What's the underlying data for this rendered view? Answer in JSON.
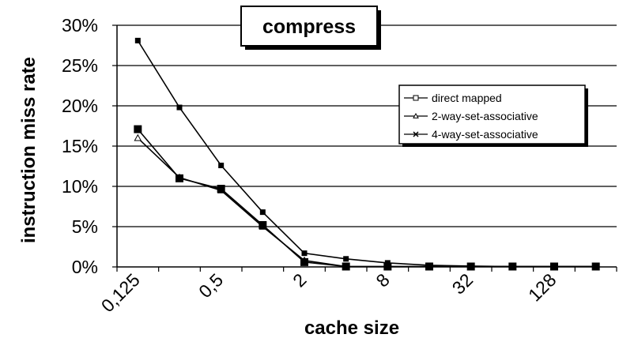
{
  "chart_data": {
    "type": "line",
    "title": "compress",
    "xlabel": "cache size",
    "ylabel": "instruction miss rate",
    "x": [
      "0,125",
      "0,25",
      "0,5",
      "1",
      "2",
      "4",
      "8",
      "16",
      "32",
      "64",
      "128",
      "256"
    ],
    "x_tick_labels": [
      "0,125",
      "0,5",
      "2",
      "8",
      "32",
      "128"
    ],
    "y_tick_labels": [
      "0%",
      "5%",
      "10%",
      "15%",
      "20%",
      "25%",
      "30%"
    ],
    "ylim": [
      0,
      30
    ],
    "y_unit": "%",
    "grid": {
      "y": true,
      "x": false
    },
    "legend_position": "right",
    "series": [
      {
        "name": "direct mapped",
        "marker": "square",
        "values": [
          28.1,
          19.8,
          12.6,
          6.8,
          1.7,
          1.0,
          0.5,
          0.2,
          0.1,
          0.05,
          0.05,
          0.05
        ]
      },
      {
        "name": "2-way-set-associative",
        "marker": "triangle",
        "values": [
          16.0,
          11.1,
          9.5,
          5.0,
          0.8,
          0.05,
          0.05,
          0.05,
          0.05,
          0.05,
          0.05,
          0.05
        ]
      },
      {
        "name": "4-way-set-associative",
        "marker": "x",
        "values": [
          17.1,
          11.0,
          9.7,
          5.2,
          0.6,
          0.05,
          0.05,
          0.05,
          0.05,
          0.05,
          0.05,
          0.05
        ]
      }
    ]
  }
}
